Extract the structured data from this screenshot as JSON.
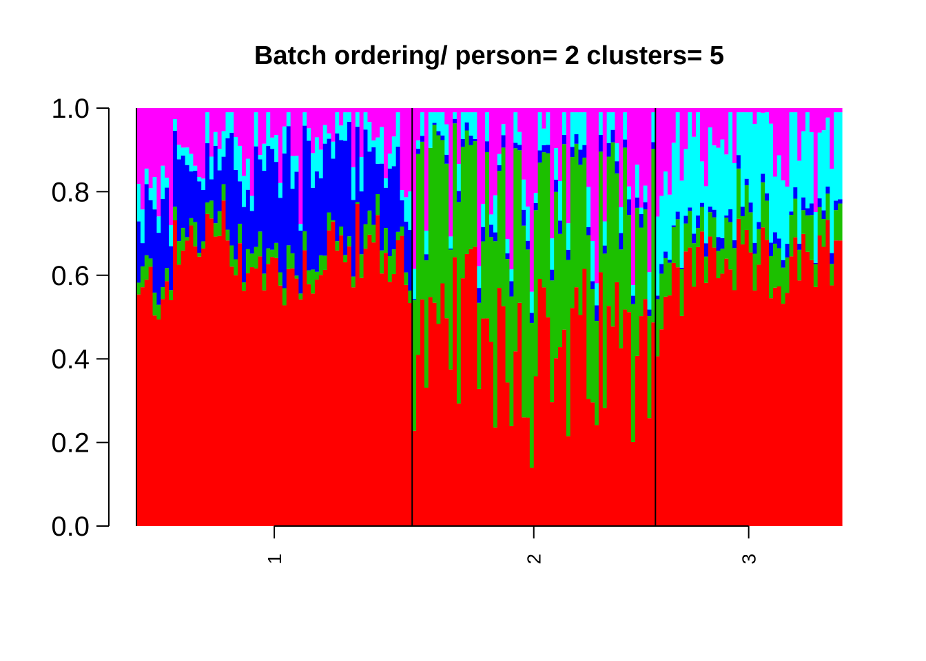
{
  "chart_data": {
    "type": "bar",
    "subtype": "stacked-proportion",
    "title": "Batch ordering/ person= 2 clusters= 5",
    "xlabel": "",
    "ylabel": "",
    "ylim": [
      0,
      1
    ],
    "y_ticks": [
      "0.0",
      "0.2",
      "0.4",
      "0.6",
      "0.8",
      "1.0"
    ],
    "groups": [
      {
        "label": "1",
        "n_samples": 68
      },
      {
        "label": "2",
        "n_samples": 60
      },
      {
        "label": "3",
        "n_samples": 46
      }
    ],
    "series": [
      {
        "name": "",
        "color": "#ff0000"
      },
      {
        "name": "",
        "color": "#1cc000"
      },
      {
        "name": "",
        "color": "#0000ff"
      },
      {
        "name": "",
        "color": "#00ffff"
      },
      {
        "name": "",
        "color": "#ff00ff"
      }
    ],
    "group_profiles": [
      {
        "red": [
          0.52,
          0.72,
          0.6,
          0.68,
          0.63
        ],
        "green": [
          0.04,
          0.03,
          0.04,
          0.03,
          0.04
        ],
        "blue": [
          0.12,
          0.14,
          0.23,
          0.22,
          0.12
        ],
        "cyan": [
          0.05,
          0.05,
          0.05,
          0.04,
          0.06
        ]
      },
      {
        "red": [
          0.4,
          0.55,
          0.4,
          0.42,
          0.5
        ],
        "green": [
          0.45,
          0.3,
          0.42,
          0.4,
          0.35
        ],
        "blue": [
          0.01,
          0.02,
          0.03,
          0.03,
          0.02
        ],
        "cyan": [
          0.05,
          0.06,
          0.06,
          0.07,
          0.05
        ]
      },
      {
        "red": [
          0.5,
          0.65,
          0.63,
          0.62,
          0.64
        ],
        "green": [
          0.12,
          0.07,
          0.1,
          0.08,
          0.08
        ],
        "blue": [
          0.01,
          0.02,
          0.02,
          0.02,
          0.01
        ],
        "cyan": [
          0.2,
          0.16,
          0.2,
          0.22,
          0.15
        ]
      }
    ],
    "grid": false,
    "legend": "none"
  }
}
